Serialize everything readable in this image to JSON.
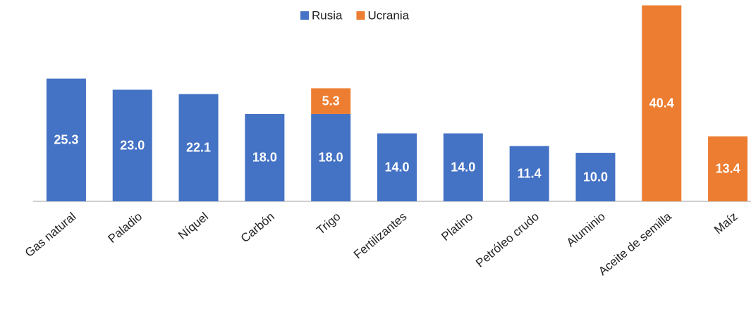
{
  "chart_data": {
    "type": "stacked_bar",
    "categories": [
      "Gas natural",
      "Paladio",
      "Níquel",
      "Carbón",
      "Trigo",
      "Fertilizantes",
      "Platino",
      "Petróleo crudo",
      "Aluminio",
      "Aceite de semilla",
      "Maíz"
    ],
    "series": [
      {
        "name": "Rusia",
        "color": "#4472c4",
        "values": [
          25.3,
          23.0,
          22.1,
          18.0,
          18.0,
          14.0,
          14.0,
          11.4,
          10.0,
          null,
          null
        ],
        "value_labels": [
          "25.3",
          "23.0",
          "22.1",
          "18.0",
          "18.0",
          "14.0",
          "14.0",
          "11.4",
          "10.0",
          null,
          null
        ]
      },
      {
        "name": "Ucrania",
        "color": "#ed7d31",
        "values": [
          null,
          null,
          null,
          null,
          5.3,
          null,
          null,
          null,
          null,
          40.4,
          13.4
        ],
        "value_labels": [
          null,
          null,
          null,
          null,
          "5.3",
          null,
          null,
          null,
          null,
          "40.4",
          "13.4"
        ]
      }
    ],
    "ylim": [
      0,
      41.5
    ],
    "legend": "top"
  }
}
